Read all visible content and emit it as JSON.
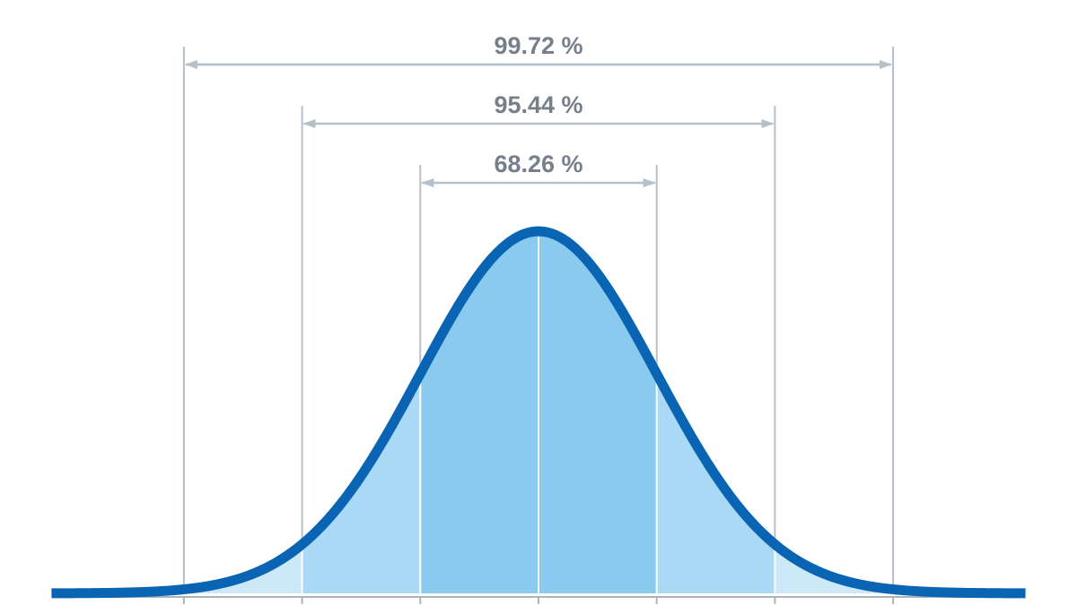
{
  "chart_data": {
    "type": "area",
    "title": "",
    "xlabel": "",
    "ylabel": "",
    "distribution": "normal",
    "mean": 0,
    "sd": 1,
    "xlim": [
      -4,
      4
    ],
    "sd_boundaries": [
      -3,
      -2,
      -1,
      0,
      1,
      2,
      3
    ],
    "x_ticks": [
      -3,
      -2,
      -1,
      0,
      1,
      2,
      3
    ],
    "ranges": [
      {
        "from": -3,
        "to": 3,
        "label": "99.72 %"
      },
      {
        "from": -2,
        "to": 2,
        "label": "95.44 %"
      },
      {
        "from": -1,
        "to": 1,
        "label": "68.26 %"
      }
    ],
    "colors": {
      "curve": "#0a64b4",
      "band_within_1sd": "#89caee",
      "band_1_to_2sd": "#a9d9f4",
      "band_2_to_3sd": "#cde9f8",
      "band_beyond_3sd": "#e4f2fb",
      "guide_lines": "#b6c0c8",
      "center_line": "#ffffff",
      "baseline": "#aab4bc",
      "label_text": "#77808a"
    }
  }
}
